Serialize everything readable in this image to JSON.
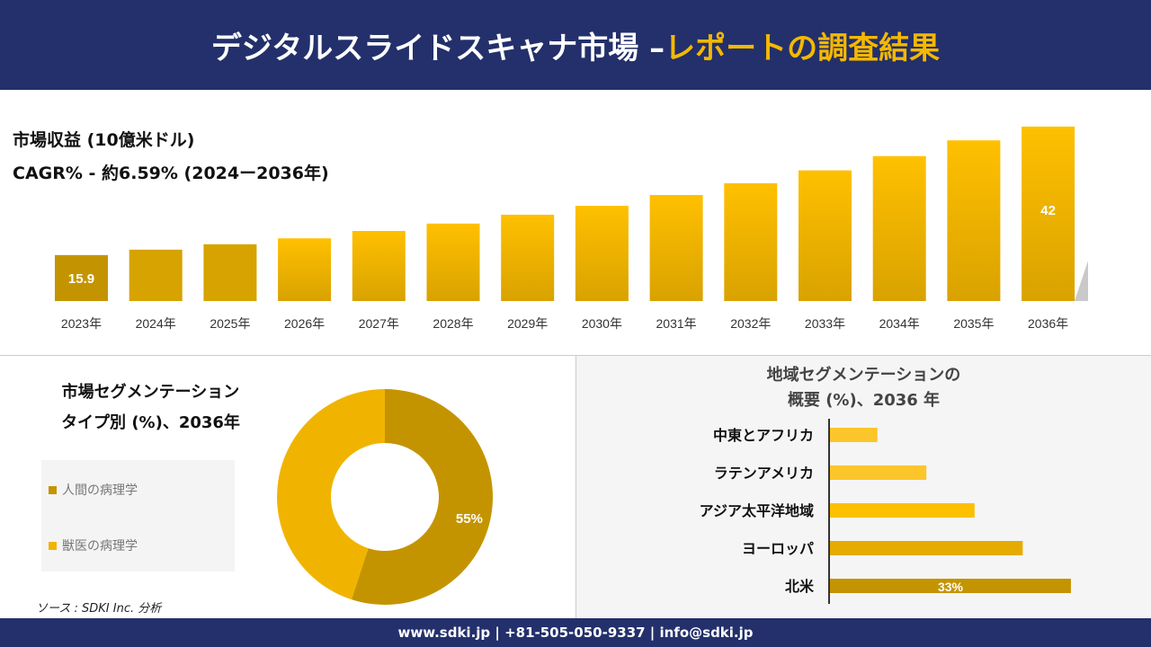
{
  "header": {
    "title_main": "デジタルスライドスキャナ市場 –",
    "title_highlight": "レポートの調査結果"
  },
  "revenue": {
    "title": "市場収益 (10億米ドル)",
    "cagr": "CAGR% - 約6.59% (2024ー2036年)"
  },
  "segment": {
    "title_line1": "市場セグメンテーション",
    "title_line2": "タイプ別 (%)、2036年"
  },
  "region": {
    "title_line1": "地域セグメンテーションの",
    "title_line2": "概要 (%)、2036 年"
  },
  "source": "ソース : SDKI Inc. 分析",
  "footer": "www.sdki.jp | +81-505-050-9337 | info@sdki.jp",
  "colors": {
    "navy": "#23306b",
    "accent": "#f5b800",
    "dark_gold": "#c49400"
  },
  "chart_data": [
    {
      "type": "bar",
      "categories": [
        "2023年",
        "2024年",
        "2025年",
        "2026年",
        "2027年",
        "2028年",
        "2029年",
        "2030年",
        "2031年",
        "2032年",
        "2033年",
        "2034年",
        "2035年",
        "2036年"
      ],
      "values": [
        15.9,
        17.0,
        18.1,
        19.3,
        20.8,
        22.3,
        24.1,
        25.9,
        28.1,
        30.5,
        33.1,
        36.0,
        39.2,
        42
      ],
      "data_labels": {
        "0": "15.9",
        "13": "42"
      },
      "grid": false
    },
    {
      "type": "pie",
      "donut": true,
      "labels": [
        "人間の病理学",
        "獣医の病理学"
      ],
      "values": [
        55,
        45
      ],
      "data_labels": [
        "55%",
        ""
      ],
      "colors": [
        "#c49400",
        "#f0b400"
      ],
      "legend": "left"
    },
    {
      "type": "bar",
      "orientation": "horizontal",
      "categories": [
        "中東とアフリカ",
        "ラテンアメリカ",
        "アジア太平洋地域",
        "ヨーロッパ",
        "北米"
      ],
      "values": [
        6.5,
        13.2,
        19.8,
        26.4,
        33
      ],
      "data_labels": {
        "4": "33%"
      },
      "colors": [
        "#fcc52a",
        "#fcc52a",
        "#fcc000",
        "#e6ab00",
        "#c49400"
      ],
      "grid": false
    }
  ]
}
